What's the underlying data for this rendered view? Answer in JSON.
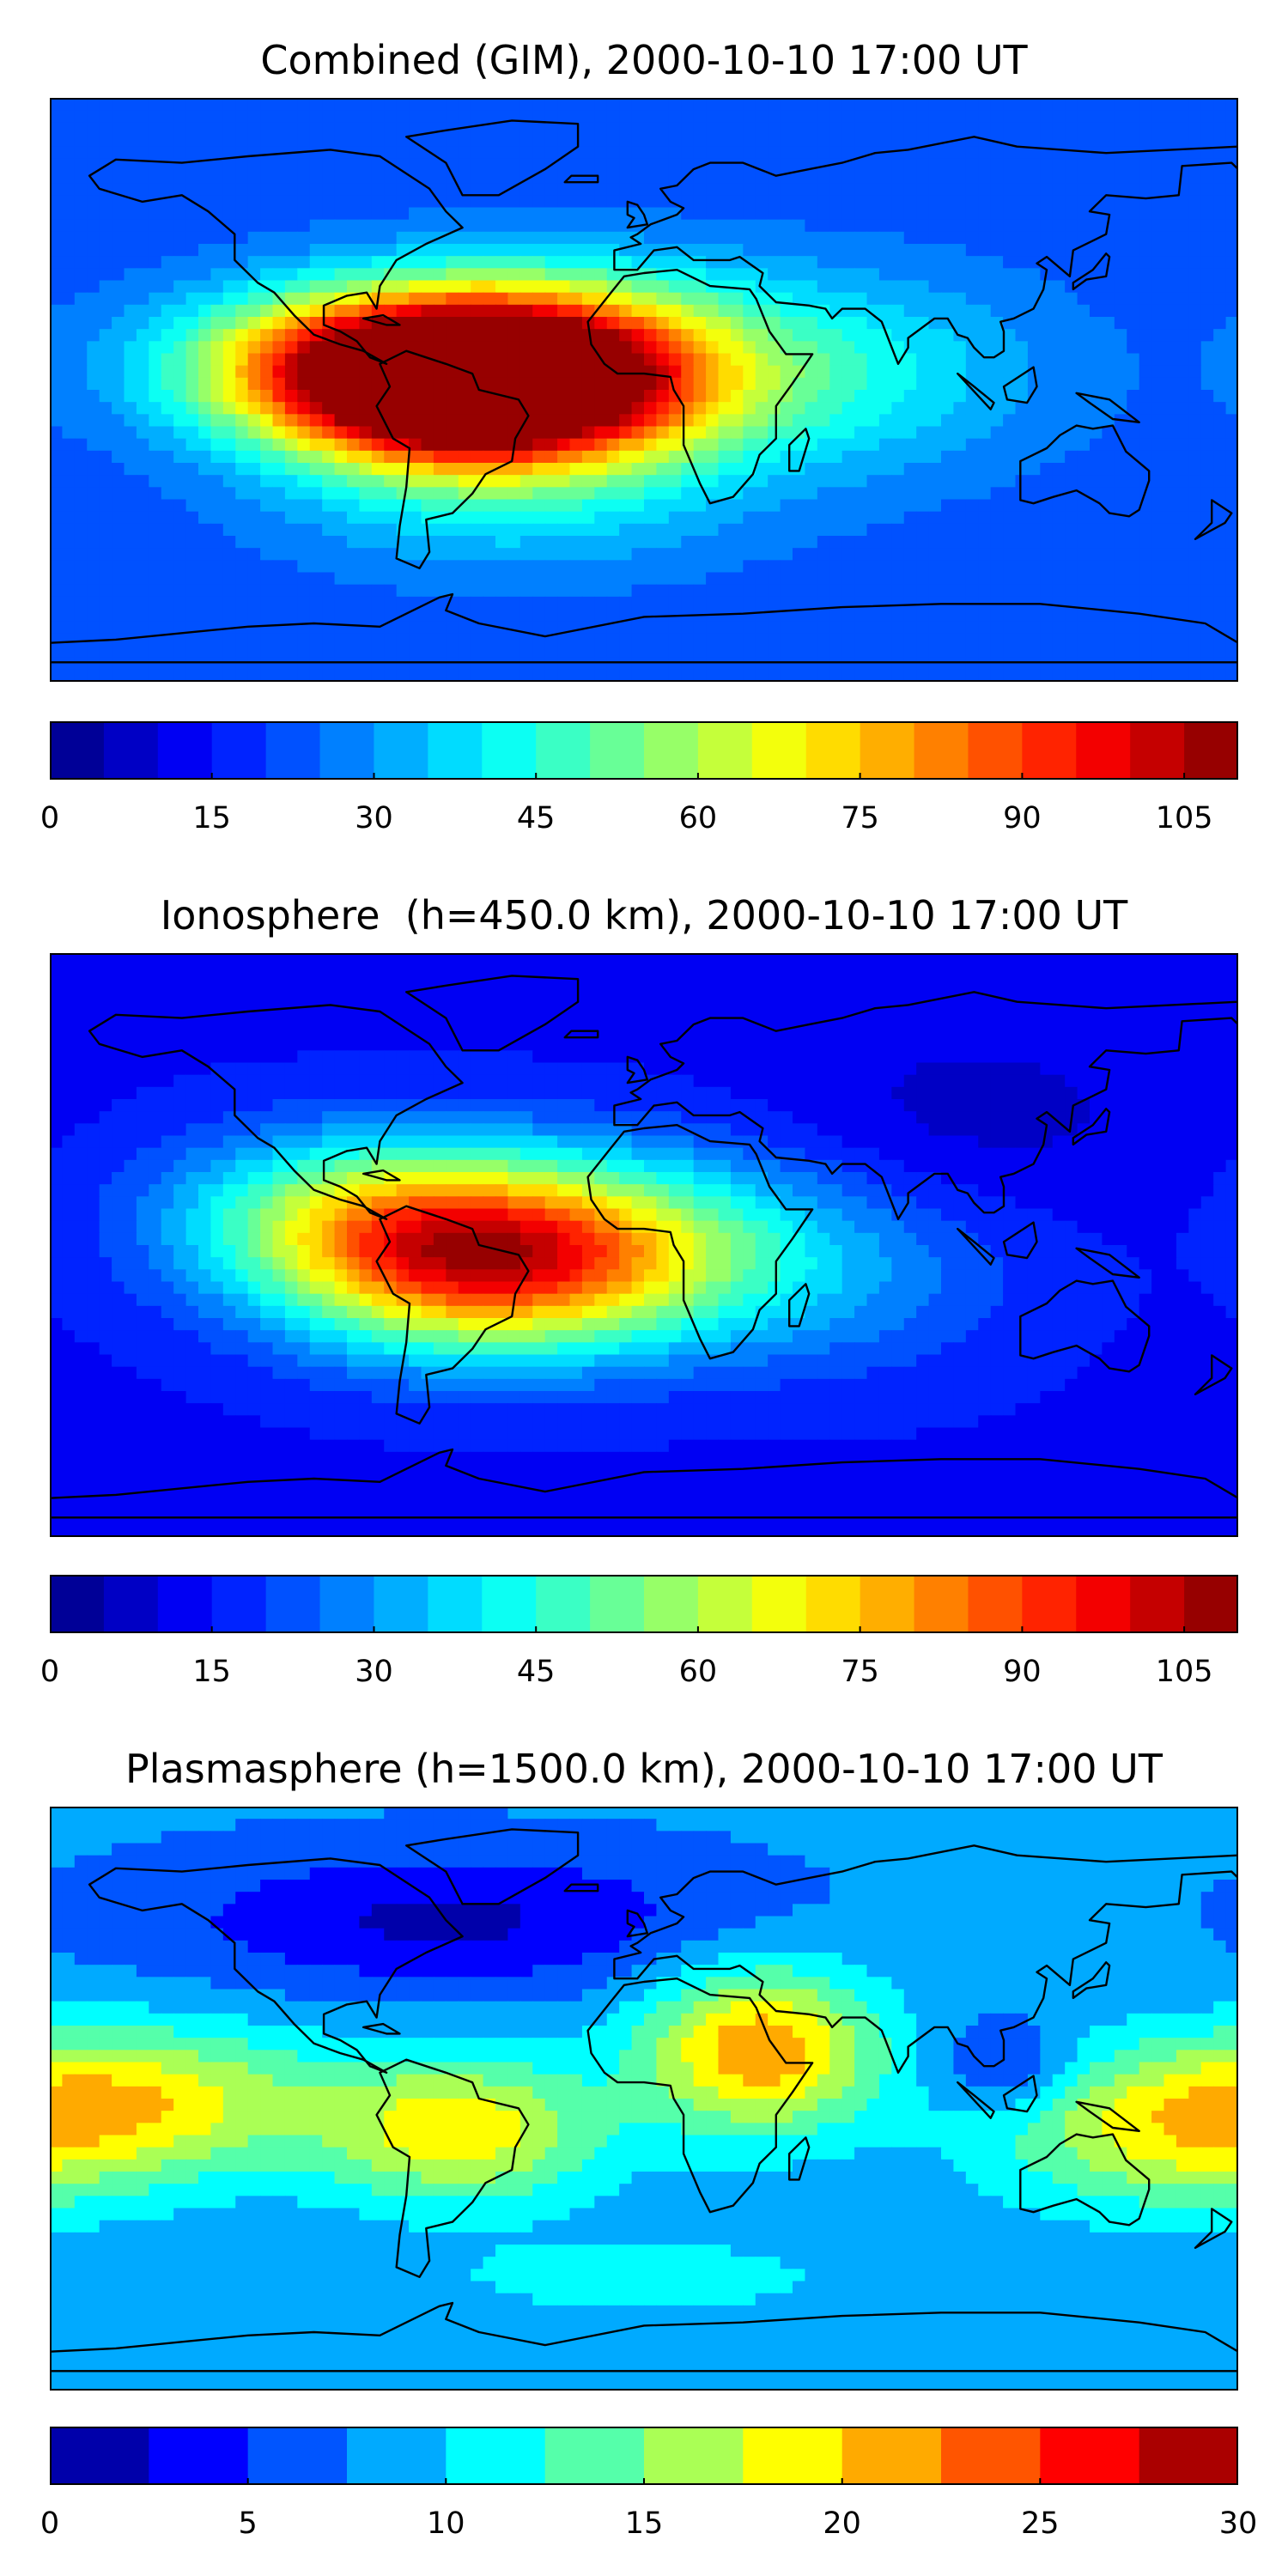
{
  "chart_data": [
    {
      "type": "heatmap",
      "title": "Combined (GIM), 2000-10-10 17:00 UT",
      "colormap": "jet",
      "colorbar": {
        "min": 0,
        "max": 110,
        "step": 5,
        "ticks": [
          0,
          15,
          30,
          45,
          60,
          75,
          90,
          105
        ],
        "tick_labels": [
          "0",
          "15",
          "30",
          "45",
          "60",
          "75",
          "90",
          "105"
        ]
      },
      "field": {
        "background": 22,
        "blobs": [
          {
            "lon": -58,
            "lat": 2,
            "value": 100,
            "sigma_lon": 38,
            "sigma_lat": 18
          },
          {
            "lon": -20,
            "lat": 5,
            "value": 55,
            "sigma_lon": 40,
            "sigma_lat": 20
          },
          {
            "lon": -95,
            "lat": 8,
            "value": 35,
            "sigma_lon": 40,
            "sigma_lat": 16
          },
          {
            "lon": 60,
            "lat": 5,
            "value": 18,
            "sigma_lon": 45,
            "sigma_lat": 22
          },
          {
            "lon": -40,
            "lat": -40,
            "value": 10,
            "sigma_lon": 50,
            "sigma_lat": 15
          }
        ]
      }
    },
    {
      "type": "heatmap",
      "title": "Ionosphere  (h=450.0 km), 2000-10-10 17:00 UT",
      "colormap": "jet",
      "colorbar": {
        "min": 0,
        "max": 110,
        "step": 5,
        "ticks": [
          0,
          15,
          30,
          45,
          60,
          75,
          90,
          105
        ],
        "tick_labels": [
          "0",
          "15",
          "30",
          "45",
          "60",
          "75",
          "90",
          "105"
        ]
      },
      "field": {
        "background": 14,
        "blobs": [
          {
            "lon": -50,
            "lat": -5,
            "value": 70,
            "sigma_lon": 42,
            "sigma_lat": 20
          },
          {
            "lon": -90,
            "lat": 10,
            "value": 30,
            "sigma_lon": 40,
            "sigma_lat": 18
          },
          {
            "lon": 0,
            "lat": 0,
            "value": 25,
            "sigma_lon": 40,
            "sigma_lat": 20
          },
          {
            "lon": 100,
            "lat": 40,
            "value": -6,
            "sigma_lon": 40,
            "sigma_lat": 20
          },
          {
            "lon": 60,
            "lat": -10,
            "value": 12,
            "sigma_lon": 40,
            "sigma_lat": 22
          }
        ]
      }
    },
    {
      "type": "heatmap",
      "title": "Plasmasphere (h=1500.0 km), 2000-10-10 17:00 UT",
      "colormap": "jet",
      "colorbar": {
        "min": 0,
        "max": 30,
        "step": 2.5,
        "ticks": [
          0,
          5,
          10,
          15,
          20,
          25,
          30
        ],
        "tick_labels": [
          "0",
          "5",
          "10",
          "15",
          "20",
          "25",
          "30"
        ]
      },
      "field": {
        "background": 8,
        "blobs": [
          {
            "lon": 35,
            "lat": 15,
            "value": 14,
            "sigma_lon": 25,
            "sigma_lat": 18
          },
          {
            "lon": -55,
            "lat": -10,
            "value": 11,
            "sigma_lon": 30,
            "sigma_lat": 16
          },
          {
            "lon": -150,
            "lat": 0,
            "value": 9,
            "sigma_lon": 40,
            "sigma_lat": 16
          },
          {
            "lon": 160,
            "lat": -10,
            "value": 9,
            "sigma_lon": 40,
            "sigma_lat": 18
          },
          {
            "lon": -60,
            "lat": 55,
            "value": -6,
            "sigma_lon": 60,
            "sigma_lat": 15
          },
          {
            "lon": 110,
            "lat": 10,
            "value": -5,
            "sigma_lon": 14,
            "sigma_lat": 10
          },
          {
            "lon": 0,
            "lat": -55,
            "value": 4,
            "sigma_lon": 40,
            "sigma_lat": 8
          }
        ]
      }
    }
  ]
}
